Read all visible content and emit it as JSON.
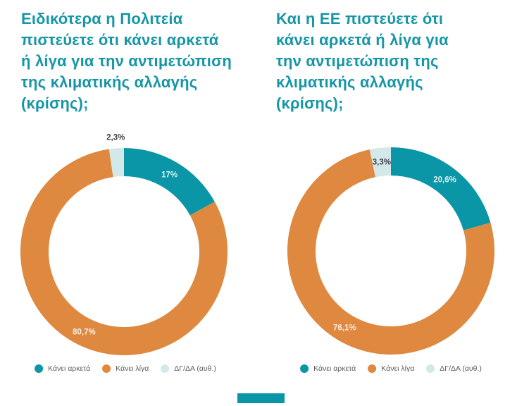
{
  "palette": {
    "teal": "#0a96a6",
    "orange": "#de8840",
    "pale": "#d3e8e8",
    "title": "#1596a7",
    "dark_label": "#3f4347",
    "legend_text": "#585d63",
    "light_label": "#ffffff"
  },
  "footer": {
    "accent_bar_color": "#0a96a6"
  },
  "chart_data": [
    {
      "type": "pie",
      "subtype": "donut",
      "inner_radius_ratio": 0.73,
      "title": "Ειδικότερα η Πολιτεία\nπιστεύετε ότι κάνει αρκετά\nή λίγα για την αντιμετώπιση\nτης κλιματικής αλλαγής\n(κρίσης);",
      "labels": [
        "Κάνει αρκετά",
        "Κάνει λίγα",
        "ΔΓ/ΔΑ (αυθ.)"
      ],
      "values": [
        17,
        80.7,
        2.3
      ],
      "value_labels": [
        "17%",
        "80,7%",
        "2,3%"
      ],
      "colors": [
        "teal",
        "orange",
        "pale"
      ],
      "label_placement": [
        "inside",
        "inside",
        "outside"
      ],
      "label_colors": [
        "light",
        "light",
        "dark"
      ],
      "start_angle_deg": 0,
      "direction": "clockwise",
      "legend_position": "bottom"
    },
    {
      "type": "pie",
      "subtype": "donut",
      "inner_radius_ratio": 0.73,
      "title": "Και η ΕΕ πιστεύετε ότι\nκάνει αρκετά ή λίγα για\nτην αντιμετώπιση της\nκλιματικής αλλαγής\n(κρίσης);",
      "labels": [
        "Κάνει αρκετά",
        "Κάνει λίγα",
        "ΔΓ/ΔΑ (αυθ.)"
      ],
      "values": [
        20.6,
        76.1,
        3.3
      ],
      "value_labels": [
        "20,6%",
        "76,1%",
        "3,3%"
      ],
      "colors": [
        "teal",
        "orange",
        "pale"
      ],
      "label_placement": [
        "inside",
        "inside",
        "inside"
      ],
      "label_colors": [
        "light",
        "light",
        "dark"
      ],
      "start_angle_deg": 0,
      "direction": "clockwise",
      "legend_position": "bottom"
    }
  ]
}
